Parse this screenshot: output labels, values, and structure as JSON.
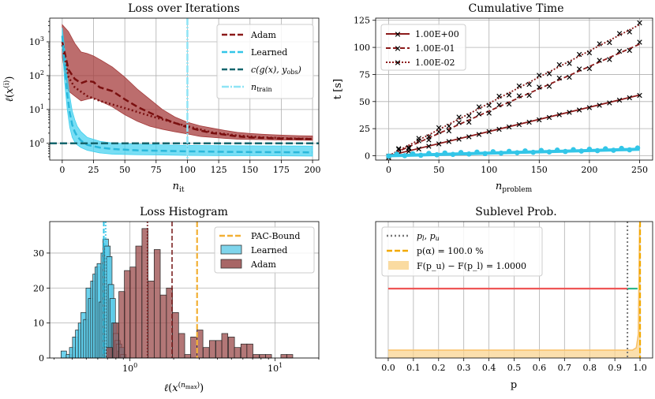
{
  "chart_data": [
    {
      "type": "line",
      "title": "Loss over Iterations",
      "xlabel": "n_it",
      "ylabel": "ℓ(x^(i))",
      "yscale": "log",
      "xlim": [
        -10,
        205
      ],
      "ylim": [
        0.32,
        5000
      ],
      "x_ticks": [
        "0",
        "25",
        "50",
        "75",
        "100",
        "125",
        "150",
        "175",
        "200"
      ],
      "y_ticks": [
        "10^0",
        "10^1",
        "10^2",
        "10^3"
      ],
      "vline_x": 100,
      "hline_y": 1.0,
      "legend": [
        "Adam",
        "Learned",
        "c(g(x), y_obs)",
        "n_train"
      ],
      "series": [
        {
          "name": "Adam",
          "x": [
            0,
            5,
            10,
            15,
            20,
            25,
            30,
            40,
            50,
            60,
            70,
            80,
            90,
            100,
            110,
            120,
            130,
            140,
            150,
            160,
            170,
            180,
            190,
            200
          ],
          "values": [
            1000,
            150,
            80,
            60,
            70,
            65,
            45,
            35,
            20,
            12,
            8,
            5.5,
            4,
            3,
            2.4,
            2,
            1.8,
            1.6,
            1.5,
            1.45,
            1.4,
            1.37,
            1.35,
            1.33
          ],
          "lower": [
            350,
            35,
            25,
            18,
            20,
            22,
            18,
            12,
            7,
            4.5,
            3.2,
            2.6,
            2.2,
            1.9,
            1.6,
            1.5,
            1.4,
            1.33,
            1.3,
            1.28,
            1.26,
            1.25,
            1.24,
            1.23
          ],
          "upper": [
            3200,
            2000,
            900,
            500,
            450,
            380,
            300,
            180,
            90,
            40,
            20,
            10,
            6,
            4.2,
            3.3,
            2.8,
            2.4,
            2.1,
            1.95,
            1.85,
            1.78,
            1.72,
            1.68,
            1.65
          ]
        },
        {
          "name": "Adam (dotted)",
          "x": [
            0,
            5,
            10,
            20,
            30,
            50,
            70,
            90,
            100,
            120,
            140,
            160,
            180,
            200
          ],
          "values": [
            800,
            90,
            45,
            25,
            18,
            11,
            6.5,
            4,
            3.2,
            2.1,
            1.7,
            1.5,
            1.4,
            1.35
          ]
        },
        {
          "name": "Learned",
          "x": [
            0,
            2,
            4,
            6,
            8,
            10,
            12,
            15,
            20,
            30,
            40,
            60,
            80,
            100,
            130,
            160,
            200
          ],
          "values": [
            1500,
            200,
            30,
            8,
            3.5,
            2.2,
            1.6,
            1.2,
            0.9,
            0.75,
            0.68,
            0.62,
            0.6,
            0.58,
            0.56,
            0.55,
            0.54
          ],
          "lower": [
            800,
            60,
            10,
            3,
            1.5,
            1.1,
            0.9,
            0.75,
            0.62,
            0.52,
            0.48,
            0.46,
            0.45,
            0.44,
            0.43,
            0.43,
            0.42
          ],
          "upper": [
            2600,
            600,
            90,
            25,
            9,
            5,
            3.2,
            2.2,
            1.5,
            1.15,
            1.02,
            0.95,
            0.9,
            0.87,
            0.85,
            0.84,
            0.83
          ]
        }
      ]
    },
    {
      "type": "line",
      "title": "Cumulative Time",
      "xlabel": "n_problem",
      "ylabel": "t [s]",
      "xlim": [
        -13,
        263
      ],
      "ylim": [
        -4,
        127
      ],
      "x_ticks": [
        "0",
        "50",
        "100",
        "150",
        "200",
        "250"
      ],
      "y_ticks": [
        "0",
        "25",
        "50",
        "75",
        "100",
        "125"
      ],
      "legend": [
        "1.00E+00",
        "1.00E-01",
        "1.00E-02"
      ],
      "series": [
        {
          "name": "1.00E+00",
          "x": [
            0,
            250
          ],
          "values": [
            0,
            56
          ],
          "style": "solid"
        },
        {
          "name": "1.00E-01",
          "x": [
            0,
            250
          ],
          "values": [
            0,
            103
          ],
          "style": "dashed"
        },
        {
          "name": "1.00E-02",
          "x": [
            0,
            250
          ],
          "values": [
            0,
            121
          ],
          "style": "dotted"
        },
        {
          "name": "learned",
          "x": [
            0,
            250
          ],
          "values": [
            0,
            6
          ],
          "style": "cyan"
        }
      ]
    },
    {
      "type": "bar",
      "title": "Loss Histogram",
      "xlabel": "ℓ(x^(n_max))",
      "ylabel": "",
      "xscale": "log",
      "xlim": [
        0.28,
        20
      ],
      "ylim": [
        0,
        39
      ],
      "x_ticks": [
        "10^0",
        "10^1"
      ],
      "y_ticks": [
        "0",
        "10",
        "20",
        "30"
      ],
      "legend": [
        "PAC-Bound",
        "Learned",
        "Adam"
      ],
      "pac_bound": 2.9,
      "learned_vlines": [
        0.66,
        0.68
      ],
      "adam_vlines": [
        1.32,
        1.95
      ],
      "series": [
        {
          "name": "Learned",
          "values": [
            [
              0.35,
              2
            ],
            [
              0.38,
              1
            ],
            [
              0.4,
              3
            ],
            [
              0.42,
              6
            ],
            [
              0.44,
              8
            ],
            [
              0.46,
              10
            ],
            [
              0.48,
              13
            ],
            [
              0.5,
              11
            ],
            [
              0.52,
              20
            ],
            [
              0.54,
              17
            ],
            [
              0.56,
              22
            ],
            [
              0.58,
              24
            ],
            [
              0.6,
              26
            ],
            [
              0.62,
              27
            ],
            [
              0.64,
              16
            ],
            [
              0.66,
              30
            ],
            [
              0.68,
              34
            ],
            [
              0.7,
              32
            ],
            [
              0.72,
              29
            ],
            [
              0.74,
              21
            ],
            [
              0.76,
              17
            ],
            [
              0.78,
              10
            ],
            [
              0.8,
              7
            ],
            [
              0.82,
              5
            ],
            [
              0.84,
              4
            ],
            [
              0.86,
              2
            ],
            [
              0.88,
              3
            ],
            [
              0.9,
              1
            ]
          ]
        },
        {
          "name": "Adam",
          "values": [
            [
              0.72,
              3
            ],
            [
              0.8,
              10
            ],
            [
              0.88,
              19
            ],
            [
              0.96,
              25
            ],
            [
              1.05,
              26
            ],
            [
              1.15,
              32
            ],
            [
              1.27,
              37
            ],
            [
              1.4,
              22
            ],
            [
              1.54,
              31
            ],
            [
              1.7,
              18
            ],
            [
              1.87,
              20
            ],
            [
              2.06,
              13
            ],
            [
              2.27,
              7
            ],
            [
              2.5,
              1
            ],
            [
              2.75,
              6
            ],
            [
              3.03,
              8
            ],
            [
              3.35,
              3
            ],
            [
              3.7,
              5
            ],
            [
              4.1,
              5
            ],
            [
              4.5,
              7
            ],
            [
              5.0,
              6
            ],
            [
              5.5,
              3
            ],
            [
              6.1,
              4
            ],
            [
              6.7,
              4
            ],
            [
              7.4,
              1
            ],
            [
              8.2,
              1
            ],
            [
              9.0,
              1
            ],
            [
              11.5,
              1
            ],
            [
              12.6,
              1
            ]
          ]
        }
      ]
    },
    {
      "type": "line",
      "title": "Sublevel Prob.",
      "xlabel": "p",
      "ylabel": "",
      "xlim": [
        -0.05,
        1.05
      ],
      "x_ticks": [
        "0.0",
        "0.1",
        "0.2",
        "0.3",
        "0.4",
        "0.5",
        "0.6",
        "0.7",
        "0.8",
        "0.9",
        "1.0"
      ],
      "legend": [
        "p_l, p_u",
        "p(α) = 100.0 %",
        "F(p_u) − F(p_l) = 1.0000"
      ],
      "p_l": 0.95,
      "p_alpha": 1.0,
      "red_line": {
        "x": [
          0,
          0.95
        ]
      },
      "green_line": {
        "x": [
          0.95,
          0.99
        ]
      }
    }
  ]
}
